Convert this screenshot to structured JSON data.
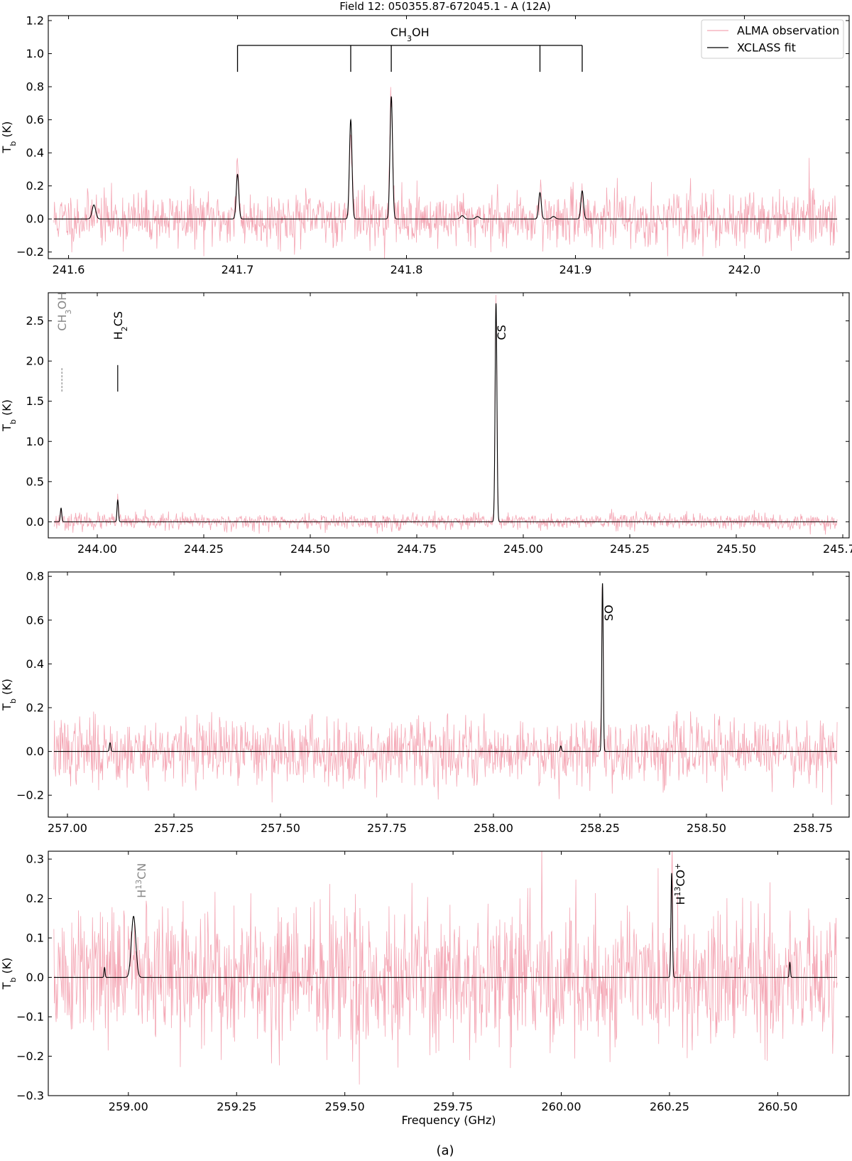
{
  "figure": {
    "title": "Field 12: 050355.87-672045.1 - A (12A)",
    "caption": "(a)",
    "colors": {
      "observation": "#f4a6b4",
      "fit": "#000000",
      "identified": "#000000",
      "tentative": "#888888"
    }
  },
  "chart_data": [
    {
      "type": "line",
      "title": "Field 12: 050355.87-672045.1 - A (12A)",
      "xlabel": "",
      "ylabel": "T_b (K)",
      "xlim": [
        241.588,
        242.062
      ],
      "ylim": [
        -0.24,
        1.23
      ],
      "xticks": [
        241.6,
        241.7,
        241.8,
        241.9,
        242.0
      ],
      "xtick_labels": [
        "241.6",
        "241.7",
        "241.8",
        "241.9",
        "242.0"
      ],
      "yticks": [
        -0.2,
        0.0,
        0.2,
        0.4,
        0.6,
        0.8,
        1.0,
        1.2
      ],
      "ytick_labels": [
        "−0.2",
        "0.0",
        "0.2",
        "0.4",
        "0.6",
        "0.8",
        "1.0",
        "1.2"
      ],
      "noise": {
        "sigma": 0.08,
        "seed": 11
      },
      "legend": {
        "position": "top-right",
        "entries": [
          "ALMA observation",
          "XCLASS fit"
        ]
      },
      "series": [
        {
          "name": "ALMA observation",
          "kind": "observation"
        },
        {
          "name": "XCLASS fit",
          "kind": "fit"
        }
      ],
      "peaks": [
        {
          "x": 241.615,
          "amp": 0.085,
          "fwhm": 0.0025
        },
        {
          "x": 241.7,
          "amp": 0.27,
          "fwhm": 0.0018
        },
        {
          "x": 241.767,
          "amp": 0.6,
          "fwhm": 0.0018
        },
        {
          "x": 241.791,
          "amp": 0.74,
          "fwhm": 0.0018
        },
        {
          "x": 241.833,
          "amp": 0.02,
          "fwhm": 0.0025
        },
        {
          "x": 241.842,
          "amp": 0.015,
          "fwhm": 0.0025
        },
        {
          "x": 241.879,
          "amp": 0.16,
          "fwhm": 0.0018
        },
        {
          "x": 241.887,
          "amp": 0.015,
          "fwhm": 0.0025
        },
        {
          "x": 241.904,
          "amp": 0.17,
          "fwhm": 0.0018
        }
      ],
      "line_group": {
        "label_html": "CH<tspan baseline-shift=\"sub\" font-size=\"11\">3</tspan>OH",
        "label_text": "CH3OH",
        "bar_y": 1.05,
        "bottom_y": 0.89,
        "positions": [
          241.7,
          241.767,
          241.791,
          241.879,
          241.904
        ]
      },
      "line_labels": []
    },
    {
      "type": "line",
      "xlabel": "",
      "ylabel": "T_b (K)",
      "xlim": [
        243.885,
        245.765
      ],
      "ylim": [
        -0.2,
        2.85
      ],
      "xticks": [
        244.0,
        244.25,
        244.5,
        244.75,
        245.0,
        245.25,
        245.5,
        245.75
      ],
      "xtick_labels": [
        "244.00",
        "244.25",
        "244.50",
        "244.75",
        "245.00",
        "245.25",
        "245.50",
        "245.75"
      ],
      "yticks": [
        0.0,
        0.5,
        1.0,
        1.5,
        2.0,
        2.5
      ],
      "ytick_labels": [
        "0.0",
        "0.5",
        "1.0",
        "1.5",
        "2.0",
        "2.5"
      ],
      "noise": {
        "sigma": 0.05,
        "seed": 23
      },
      "series": [
        {
          "name": "ALMA observation",
          "kind": "observation"
        },
        {
          "name": "XCLASS fit",
          "kind": "fit"
        }
      ],
      "peaks": [
        {
          "x": 243.915,
          "amp": 0.17,
          "fwhm": 0.004
        },
        {
          "x": 244.048,
          "amp": 0.27,
          "fwhm": 0.004
        },
        {
          "x": 244.936,
          "amp": 2.72,
          "fwhm": 0.005
        }
      ],
      "line_labels": [
        {
          "x": 243.917,
          "label_html": "CH<tspan baseline-shift=\"sub\" font-size=\"11\">3</tspan>OH",
          "label_text": "CH3OH",
          "tentative": true,
          "marker": [
            1.62,
            1.93
          ],
          "label_top": 2.86
        },
        {
          "x": 244.048,
          "label_html": "H<tspan baseline-shift=\"sub\" font-size=\"11\">2</tspan>CS",
          "label_text": "H2CS",
          "tentative": false,
          "marker": [
            1.62,
            1.95
          ],
          "label_top": 2.62
        },
        {
          "x": 244.948,
          "label_html": "CS",
          "label_text": "CS",
          "tentative": false,
          "marker": null,
          "label_top": 2.45
        }
      ]
    },
    {
      "type": "line",
      "xlabel": "",
      "ylabel": "T_b (K)",
      "xlim": [
        256.955,
        258.835
      ],
      "ylim": [
        -0.3,
        0.82
      ],
      "xticks": [
        257.0,
        257.25,
        257.5,
        257.75,
        258.0,
        258.25,
        258.5,
        258.75
      ],
      "xtick_labels": [
        "257.00",
        "257.25",
        "257.50",
        "257.75",
        "258.00",
        "258.25",
        "258.50",
        "258.75"
      ],
      "yticks": [
        -0.2,
        0.0,
        0.2,
        0.4,
        0.6,
        0.8
      ],
      "ytick_labels": [
        "−0.2",
        "0.0",
        "0.2",
        "0.4",
        "0.6",
        "0.8"
      ],
      "noise": {
        "sigma": 0.075,
        "seed": 37
      },
      "series": [
        {
          "name": "ALMA observation",
          "kind": "observation"
        },
        {
          "name": "XCLASS fit",
          "kind": "fit"
        }
      ],
      "peaks": [
        {
          "x": 257.1,
          "amp": 0.04,
          "fwhm": 0.004
        },
        {
          "x": 258.158,
          "amp": 0.025,
          "fwhm": 0.004
        },
        {
          "x": 258.256,
          "amp": 0.77,
          "fwhm": 0.004
        }
      ],
      "line_labels": [
        {
          "x": 258.27,
          "label_html": "SO",
          "label_text": "SO",
          "tentative": false,
          "marker": null,
          "label_top": 0.67
        }
      ]
    },
    {
      "type": "line",
      "xlabel": "Frequency (GHz)",
      "ylabel": "T_b (K)",
      "xlim": [
        258.815,
        260.665
      ],
      "ylim": [
        -0.3,
        0.32
      ],
      "xticks": [
        259.0,
        259.25,
        259.5,
        259.75,
        260.0,
        260.25,
        260.5
      ],
      "xtick_labels": [
        "259.00",
        "259.25",
        "259.50",
        "259.75",
        "260.00",
        "260.25",
        "260.50"
      ],
      "yticks": [
        -0.3,
        -0.2,
        -0.1,
        0.0,
        0.1,
        0.2,
        0.3
      ],
      "ytick_labels": [
        "−0.3",
        "−0.2",
        "−0.1",
        "0.0",
        "0.1",
        "0.2",
        "0.3"
      ],
      "noise": {
        "sigma": 0.09,
        "seed": 51
      },
      "series": [
        {
          "name": "ALMA observation",
          "kind": "observation"
        },
        {
          "name": "XCLASS fit",
          "kind": "fit"
        }
      ],
      "peaks": [
        {
          "x": 258.945,
          "amp": 0.025,
          "fwhm": 0.003
        },
        {
          "x": 259.012,
          "amp": 0.155,
          "fwhm": 0.012
        },
        {
          "x": 260.255,
          "amp": 0.265,
          "fwhm": 0.004
        },
        {
          "x": 260.528,
          "amp": 0.038,
          "fwhm": 0.003
        }
      ],
      "line_labels": [
        {
          "x": 259.03,
          "label_html": "H<tspan baseline-shift=\"super\" font-size=\"11\">13</tspan>CN",
          "label_text": "H13CN",
          "tentative": true,
          "marker": null,
          "label_top": 0.29
        },
        {
          "x": 260.275,
          "label_html": "H<tspan baseline-shift=\"super\" font-size=\"11\">13</tspan>CO<tspan baseline-shift=\"super\" font-size=\"11\">+</tspan>",
          "label_text": "H13CO+",
          "tentative": false,
          "marker": null,
          "label_top": 0.29
        }
      ]
    }
  ]
}
